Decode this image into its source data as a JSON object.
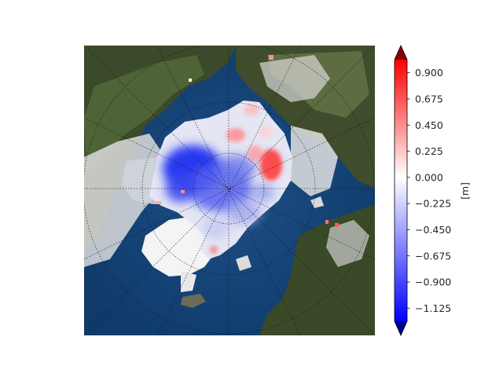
{
  "chart_data": {
    "type": "heatmap",
    "title": "",
    "xlabel": "",
    "ylabel": "",
    "map": {
      "projection": "north-polar-stereographic",
      "background": "satellite-imagery",
      "gridlines": true
    },
    "colorbar": {
      "label": "[m]",
      "colormap": "bwr",
      "vmin": -1.2375,
      "vmax": 1.0125,
      "extend": "both",
      "ticks": [
        0.9,
        0.675,
        0.45,
        0.225,
        0.0,
        -0.225,
        -0.45,
        -0.675,
        -0.9,
        -1.125
      ],
      "tick_labels": [
        "0.900",
        "0.675",
        "0.450",
        "0.225",
        "0.000",
        "−0.225",
        "−0.450",
        "−0.675",
        "−0.900",
        "−1.125"
      ],
      "colors": {
        "low": "#0000ff",
        "mid": "#ffffff",
        "high": "#ff0000",
        "under": "#00008b",
        "over": "#8b0000"
      }
    }
  }
}
